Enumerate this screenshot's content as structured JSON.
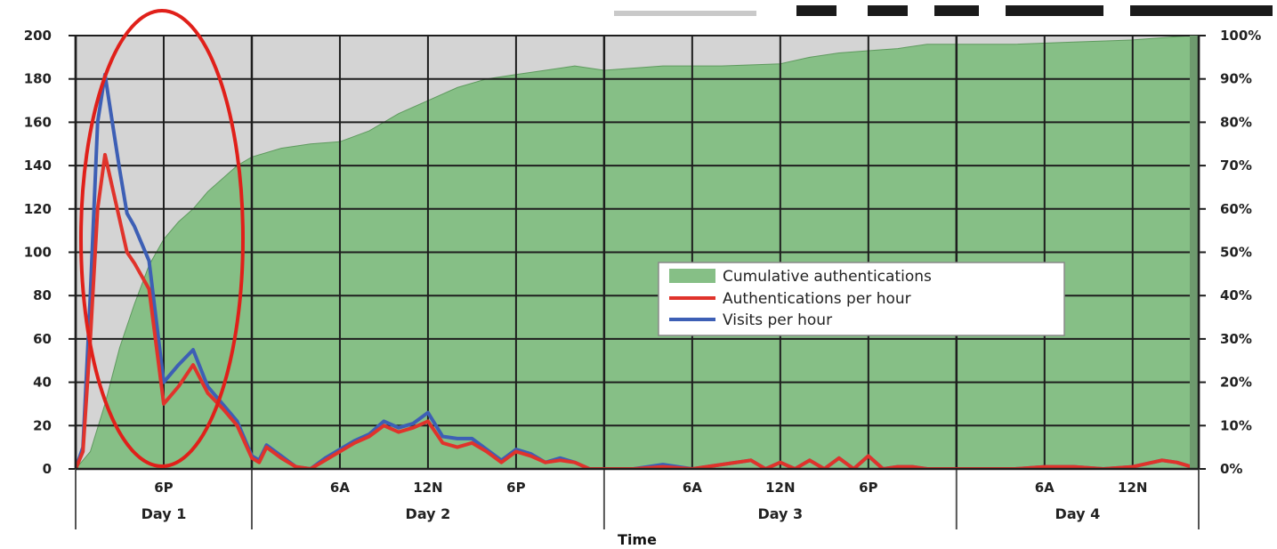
{
  "chart_data": {
    "type": "line",
    "title": "",
    "xlabel": "Time",
    "ylabel": "",
    "ylim": [
      0,
      200
    ],
    "y2lim": [
      0,
      100
    ],
    "y_ticks": [
      "0",
      "20",
      "40",
      "60",
      "80",
      "100",
      "120",
      "140",
      "160",
      "180",
      "200"
    ],
    "y2_ticks": [
      "0%",
      "10%",
      "20%",
      "30%",
      "40%",
      "50%",
      "60%",
      "70%",
      "80%",
      "90%",
      "100%"
    ],
    "x_range_hours": [
      0,
      76.5
    ],
    "day_labels": [
      "Day 1",
      "Day 2",
      "Day 3",
      "Day 4"
    ],
    "time_labels": [
      {
        "label": "6P",
        "hour": 6
      },
      {
        "label": "6A",
        "hour": 18
      },
      {
        "label": "12N",
        "hour": 24
      },
      {
        "label": "6P",
        "hour": 30
      },
      {
        "label": "6A",
        "hour": 42
      },
      {
        "label": "12N",
        "hour": 48
      },
      {
        "label": "6P",
        "hour": 54
      },
      {
        "label": "6A",
        "hour": 66
      },
      {
        "label": "12N",
        "hour": 72
      }
    ],
    "day_boundaries_hours": [
      0,
      12,
      36,
      60,
      76.5
    ],
    "grid": true,
    "legend_position": "center-right",
    "legend": [
      {
        "name": "Cumulative authentications",
        "kind": "area"
      },
      {
        "name": "Authentications per hour",
        "kind": "line"
      },
      {
        "name": "Visits per hour",
        "kind": "line"
      }
    ],
    "series": [
      {
        "name": "Cumulative authentications",
        "axis": "right",
        "color": "#86bf86",
        "x": [
          0,
          1,
          2,
          3,
          4,
          5,
          6,
          7,
          8,
          9,
          10,
          11,
          12,
          14,
          16,
          18,
          20,
          22,
          24,
          26,
          28,
          30,
          32,
          34,
          36,
          40,
          44,
          48,
          50,
          52,
          54,
          56,
          58,
          60,
          64,
          68,
          72,
          76,
          76.5
        ],
        "values": [
          0,
          4,
          15,
          28,
          38,
          47,
          53,
          57,
          60,
          64,
          67,
          70,
          72,
          74,
          75,
          75.5,
          78,
          82,
          85,
          88,
          90,
          91,
          92,
          93,
          92,
          93,
          93,
          93.5,
          95,
          96,
          96.5,
          97,
          98,
          98,
          98,
          98.5,
          99,
          100,
          100
        ]
      },
      {
        "name": "Authentications per hour",
        "axis": "left",
        "color": "#e0332b",
        "x": [
          0,
          0.5,
          1,
          1.5,
          2,
          2.5,
          3,
          3.5,
          4,
          5,
          6,
          7,
          8,
          9,
          10,
          11,
          12,
          12.5,
          13,
          14,
          15,
          16,
          17,
          18,
          19,
          20,
          21,
          22,
          23,
          24,
          25,
          26,
          27,
          28,
          29,
          30,
          31,
          32,
          33,
          34,
          35,
          36,
          38,
          40,
          42,
          44,
          46,
          47,
          48,
          49,
          50,
          51,
          52,
          53,
          54,
          55,
          56,
          57,
          58,
          59,
          60,
          62,
          64,
          66,
          68,
          70,
          72,
          74,
          75,
          76,
          76.5
        ],
        "values": [
          0,
          8,
          60,
          120,
          145,
          130,
          115,
          100,
          95,
          83,
          30,
          38,
          48,
          35,
          28,
          20,
          5,
          3,
          10,
          5,
          1,
          0,
          4,
          8,
          12,
          15,
          20,
          17,
          19,
          22,
          12,
          10,
          12,
          8,
          3,
          8,
          6,
          3,
          4,
          3,
          0,
          0,
          0,
          1,
          0,
          2,
          4,
          0,
          3,
          0,
          4,
          0,
          5,
          0,
          6,
          0,
          1,
          1,
          0,
          0,
          0,
          0,
          0,
          1,
          1,
          0,
          1,
          4,
          3,
          1,
          0
        ]
      },
      {
        "name": "Visits per hour",
        "axis": "left",
        "color": "#3d5fb5",
        "x": [
          0,
          0.5,
          1,
          1.5,
          2,
          2.5,
          3,
          3.5,
          4,
          5,
          6,
          7,
          8,
          9,
          10,
          11,
          12,
          12.5,
          13,
          14,
          15,
          16,
          17,
          18,
          19,
          20,
          21,
          22,
          23,
          24,
          25,
          26,
          27,
          28,
          29,
          30,
          31,
          32,
          33,
          34,
          35,
          36,
          38,
          40,
          42,
          44,
          46,
          47,
          48,
          49,
          50,
          51,
          52,
          53,
          54,
          55,
          56,
          57,
          58,
          59,
          60,
          62,
          64,
          66,
          68,
          70,
          72,
          74,
          75,
          76,
          76.5
        ],
        "values": [
          0,
          10,
          80,
          160,
          182,
          160,
          138,
          118,
          112,
          96,
          40,
          48,
          55,
          38,
          30,
          22,
          6,
          4,
          11,
          6,
          1,
          0,
          5,
          9,
          13,
          16,
          22,
          19,
          21,
          26,
          15,
          14,
          14,
          9,
          4,
          9,
          7,
          3,
          5,
          3,
          0,
          0,
          0,
          2,
          0,
          2,
          4,
          0,
          3,
          0,
          4,
          0,
          5,
          0,
          6,
          0,
          1,
          1,
          0,
          0,
          0,
          0,
          0,
          1,
          1,
          0,
          1,
          4,
          3,
          1,
          0
        ]
      }
    ],
    "annotation": {
      "shape": "ellipse",
      "color": "#e0201a",
      "around_hours": [
        0,
        12
      ]
    }
  }
}
